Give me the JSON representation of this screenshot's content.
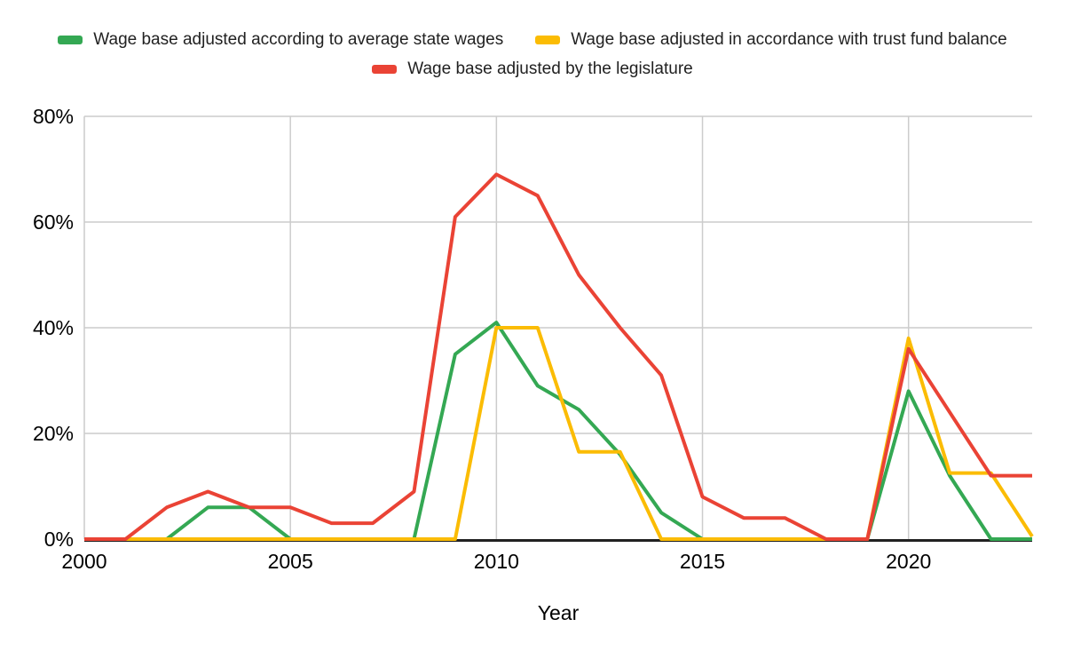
{
  "chart_data": {
    "type": "line",
    "title": "",
    "xlabel": "Year",
    "ylabel": "",
    "x": [
      2000,
      2001,
      2002,
      2003,
      2004,
      2005,
      2006,
      2007,
      2008,
      2009,
      2010,
      2011,
      2012,
      2013,
      2014,
      2015,
      2016,
      2017,
      2018,
      2019,
      2020,
      2021,
      2022,
      2023
    ],
    "series": [
      {
        "name": "Wage base adjusted according to average state wages",
        "color": "#34a853",
        "values": [
          0,
          0,
          0,
          6,
          6,
          0,
          0,
          0,
          0,
          35,
          41,
          29,
          24.5,
          16,
          5,
          0,
          0,
          0,
          0,
          0,
          28,
          12,
          0,
          0
        ]
      },
      {
        "name": "Wage base adjusted in accordance with trust fund balance",
        "color": "#fbbc04",
        "values": [
          0,
          0,
          0,
          0,
          0,
          0,
          0,
          0,
          0,
          0,
          40,
          40,
          16.5,
          16.5,
          0,
          0,
          0,
          0,
          0,
          0,
          38,
          12.5,
          12.5,
          0.5
        ]
      },
      {
        "name": "Wage base adjusted by the legislature",
        "color": "#ea4335",
        "values": [
          0,
          0,
          6,
          9,
          6,
          6,
          3,
          3,
          9,
          61,
          69,
          65,
          50,
          40,
          31,
          8,
          4,
          4,
          0,
          0,
          36,
          24,
          12,
          12
        ]
      }
    ],
    "xlim": [
      2000,
      2023
    ],
    "ylim": [
      0,
      80
    ],
    "x_axis": {
      "tick_values": [
        2000,
        2005,
        2010,
        2015,
        2020
      ],
      "tick_labels": [
        "2000",
        "2005",
        "2010",
        "2015",
        "2020"
      ]
    },
    "y_axis": {
      "tick_values": [
        0,
        20,
        40,
        60,
        80
      ],
      "tick_labels": [
        "0%",
        "20%",
        "40%",
        "60%",
        "80%"
      ]
    },
    "grid": true,
    "legend_position": "top",
    "legend_rows": [
      [
        0,
        1
      ],
      [
        2
      ]
    ],
    "colors": {
      "grid": "#cccccc",
      "axis": "#212121",
      "tick_text": "#000000",
      "legend_text": "#212121"
    }
  }
}
